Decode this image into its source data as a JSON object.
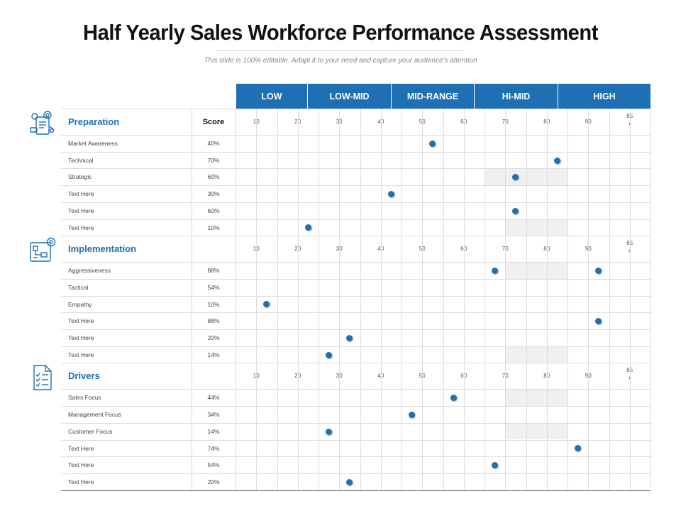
{
  "title": "Half Yearly Sales Workforce Performance Assessment",
  "subtitle": "This slide is 100% editable.  Adapt it to your need  and capture  your audience's  attention",
  "colors": {
    "accent": "#1f6fb5",
    "shade": "#f0f0f0",
    "grid": "#dcdcdc"
  },
  "bands": [
    "LOW",
    "LOW-MID",
    "MID-RANGE",
    "HI-MID",
    "HIGH"
  ],
  "score_label": "Score",
  "ticks": [
    "10",
    "20",
    "30",
    "40",
    "50",
    "60",
    "70",
    "80",
    "90",
    "85\n+"
  ],
  "sections": [
    {
      "title": "Preparation",
      "icon": "gear-document-icon",
      "rows": [
        {
          "label": "Market  Awareness",
          "pct": "40%",
          "value": 50,
          "shade": []
        },
        {
          "label": "Technical",
          "pct": "70%",
          "value": 80,
          "shade": []
        },
        {
          "label": "Strategic",
          "pct": "60%",
          "value": 70,
          "shade": [
            [
              60,
              80
            ]
          ]
        },
        {
          "label": "Text Here",
          "pct": "30%",
          "value": 40,
          "shade": []
        },
        {
          "label": "Text Here",
          "pct": "60%",
          "value": 70,
          "shade": []
        },
        {
          "label": "Text Here",
          "pct": "10%",
          "value": 20,
          "shade": [
            [
              65,
              80
            ]
          ]
        }
      ]
    },
    {
      "title": "Implementation",
      "icon": "gear-flowchart-icon",
      "rows": [
        {
          "label": "Aggressiveness",
          "pct": "88%",
          "value": 65,
          "value2": 90,
          "shade": [
            [
              65,
              80
            ]
          ]
        },
        {
          "label": "Tactical",
          "pct": "54%",
          "value": null,
          "shade": []
        },
        {
          "label": "Empathy",
          "pct": "10%",
          "value": 10,
          "shade": []
        },
        {
          "label": "Text Here",
          "pct": "88%",
          "value": 90,
          "shade": []
        },
        {
          "label": "Text Here",
          "pct": "20%",
          "value": 30,
          "shade": []
        },
        {
          "label": "Text Here",
          "pct": "14%",
          "value": 25,
          "shade": [
            [
              65,
              80
            ]
          ]
        }
      ]
    },
    {
      "title": "Drivers",
      "icon": "checklist-icon",
      "rows": [
        {
          "label": "Sales Focus",
          "pct": "44%",
          "value": 55,
          "shade": [
            [
              65,
              80
            ]
          ]
        },
        {
          "label": "Management Focus",
          "pct": "34%",
          "value": 45,
          "shade": []
        },
        {
          "label": "Customer Focus",
          "pct": "14%",
          "value": 25,
          "shade": [
            [
              65,
              80
            ]
          ]
        },
        {
          "label": "Text Here",
          "pct": "74%",
          "value": 85,
          "shade": []
        },
        {
          "label": "Text Here",
          "pct": "54%",
          "value": 65,
          "shade": []
        },
        {
          "label": "Text Here",
          "pct": "20%",
          "value": 30,
          "shade": []
        }
      ]
    }
  ]
}
